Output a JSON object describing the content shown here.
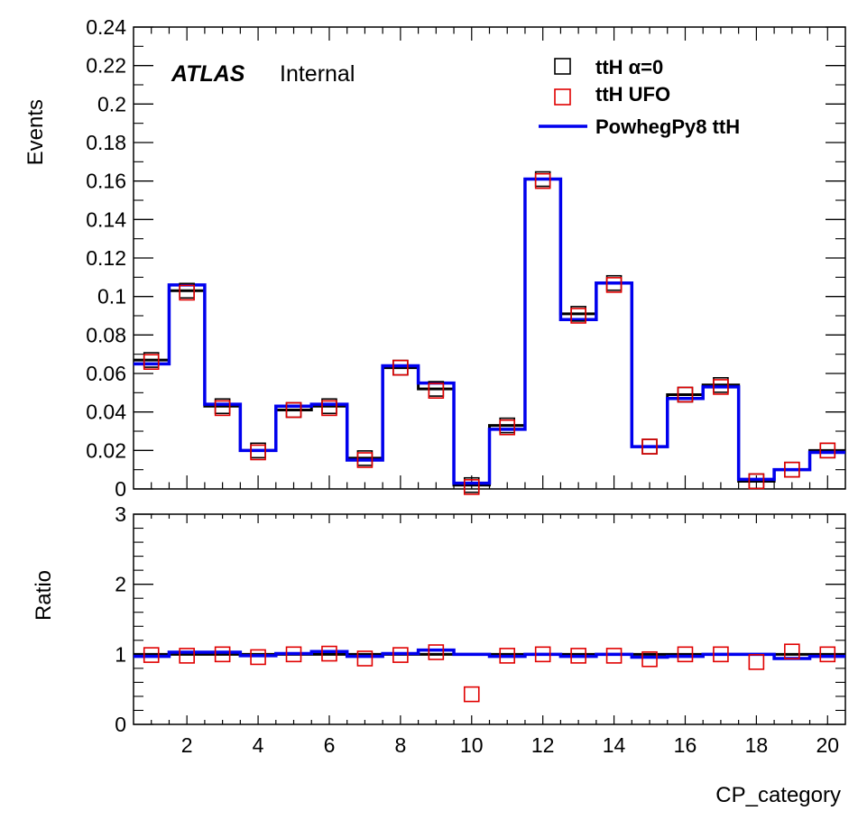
{
  "colors": {
    "alpha0": "#000000",
    "ufo": "#e00000",
    "powheg": "#0000ee"
  },
  "chart_data": [
    {
      "type": "histogram",
      "xlabel": "",
      "ylabel": "Events",
      "xlim": [
        0.5,
        20.5
      ],
      "ylim": [
        0,
        0.24
      ],
      "yticks": [
        0,
        0.02,
        0.04,
        0.06,
        0.08,
        0.1,
        0.12,
        0.14,
        0.16,
        0.18,
        0.2,
        0.22,
        0.24
      ],
      "ytick_labels": [
        "0",
        "0.02",
        "0.04",
        "0.06",
        "0.08",
        "0.1",
        "0.12",
        "0.14",
        "0.16",
        "0.18",
        "0.2",
        "0.22",
        "0.24"
      ],
      "annotation": {
        "experiment": "ATLAS",
        "status": "Internal"
      },
      "legend_position": "top-right",
      "bins": [
        1,
        2,
        3,
        4,
        5,
        6,
        7,
        8,
        9,
        10,
        11,
        12,
        13,
        14,
        15,
        16,
        17,
        18,
        19,
        20
      ],
      "series": [
        {
          "name": "ttH α=0",
          "style": "open-square",
          "color": "#000000",
          "values": [
            0.067,
            0.103,
            0.043,
            0.02,
            0.041,
            0.043,
            0.016,
            0.063,
            0.052,
            0.002,
            0.033,
            0.161,
            0.091,
            0.107,
            0.022,
            0.049,
            0.054,
            0.004,
            0.01,
            0.02
          ]
        },
        {
          "name": "ttH UFO",
          "style": "open-square",
          "color": "#e00000",
          "values": [
            0.066,
            0.102,
            0.042,
            0.019,
            0.041,
            0.042,
            0.015,
            0.063,
            0.051,
            0.001,
            0.032,
            0.16,
            0.09,
            0.106,
            0.022,
            0.049,
            0.053,
            0.004,
            0.01,
            0.02
          ]
        },
        {
          "name": "PowhegPy8 ttH",
          "style": "step-line",
          "color": "#0000ee",
          "values": [
            0.065,
            0.106,
            0.044,
            0.02,
            0.043,
            0.044,
            0.015,
            0.064,
            0.055,
            0.003,
            0.031,
            0.161,
            0.088,
            0.107,
            0.022,
            0.047,
            0.053,
            0.005,
            0.01,
            0.019
          ]
        }
      ]
    },
    {
      "type": "ratio",
      "xlabel": "CP_category",
      "ylabel": "Ratio",
      "xlim": [
        0.5,
        20.5
      ],
      "ylim": [
        0,
        3
      ],
      "yticks": [
        0,
        1,
        2,
        3
      ],
      "ytick_labels": [
        "0",
        "1",
        "2",
        "3"
      ],
      "xticks": [
        2,
        4,
        6,
        8,
        10,
        12,
        14,
        16,
        18,
        20
      ],
      "xtick_labels": [
        "2",
        "4",
        "6",
        "8",
        "10",
        "12",
        "14",
        "16",
        "18",
        "20"
      ],
      "bins": [
        1,
        2,
        3,
        4,
        5,
        6,
        7,
        8,
        9,
        10,
        11,
        12,
        13,
        14,
        15,
        16,
        17,
        18,
        19,
        20
      ],
      "series": [
        {
          "name": "ttH α=0",
          "style": "open-square",
          "color": "#000000",
          "values": [
            1.0,
            1.0,
            1.0,
            1.0,
            1.0,
            1.0,
            1.0,
            1.0,
            1.0,
            1.0,
            1.0,
            1.0,
            1.0,
            1.0,
            1.0,
            1.0,
            1.0,
            1.0,
            1.0,
            1.0
          ]
        },
        {
          "name": "ttH UFO",
          "style": "open-square",
          "color": "#e00000",
          "values": [
            0.99,
            0.98,
            1.0,
            0.96,
            1.0,
            1.01,
            0.94,
            0.99,
            1.03,
            0.43,
            0.98,
            1.0,
            0.98,
            0.98,
            0.93,
            1.0,
            1.0,
            0.89,
            1.04,
            1.0
          ]
        },
        {
          "name": "PowhegPy8 ttH",
          "style": "step-line",
          "color": "#0000ee",
          "values": [
            0.97,
            1.03,
            1.03,
            0.98,
            1.01,
            1.04,
            0.97,
            1.01,
            1.06,
            1.0,
            0.97,
            1.0,
            0.97,
            1.0,
            0.96,
            0.97,
            1.0,
            1.0,
            0.94,
            0.97
          ]
        }
      ]
    }
  ]
}
